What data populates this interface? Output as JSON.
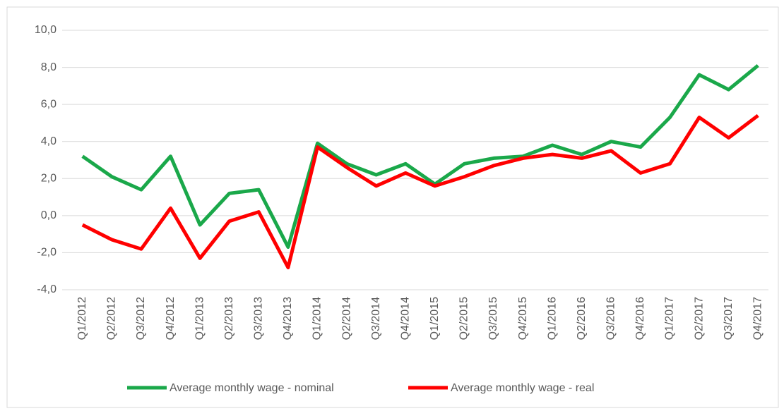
{
  "chart_data": {
    "type": "line",
    "categories": [
      "Q1/2012",
      "Q2/2012",
      "Q3/2012",
      "Q4/2012",
      "Q1/2013",
      "Q2/2013",
      "Q3/2013",
      "Q4/2013",
      "Q1/2014",
      "Q2/2014",
      "Q3/2014",
      "Q4/2014",
      "Q1/2015",
      "Q2/2015",
      "Q3/2015",
      "Q4/2015",
      "Q1/2016",
      "Q2/2016",
      "Q3/2016",
      "Q4/2016",
      "Q1/2017",
      "Q2/2017",
      "Q3/2017",
      "Q4/2017"
    ],
    "series": [
      {
        "name": "Average monthly wage - nominal",
        "color": "#1aa84a",
        "values": [
          3.2,
          2.1,
          1.4,
          3.2,
          -0.5,
          1.2,
          1.4,
          -1.7,
          3.9,
          2.8,
          2.2,
          2.8,
          1.7,
          2.8,
          3.1,
          3.2,
          3.8,
          3.3,
          4.0,
          3.7,
          5.3,
          7.6,
          6.8,
          8.1
        ]
      },
      {
        "name": "Average monthly wage - real",
        "color": "#ff0000",
        "values": [
          -0.5,
          -1.3,
          -1.8,
          0.4,
          -2.3,
          -0.3,
          0.2,
          -2.8,
          3.7,
          2.6,
          1.6,
          2.3,
          1.6,
          2.1,
          2.7,
          3.1,
          3.3,
          3.1,
          3.5,
          2.3,
          2.8,
          5.3,
          4.2,
          5.4
        ]
      }
    ],
    "ylim": [
      -4,
      10
    ],
    "yticks": [
      {
        "value": -4,
        "label": "-4,0"
      },
      {
        "value": -2,
        "label": "-2,0"
      },
      {
        "value": 0,
        "label": "0,0"
      },
      {
        "value": 2,
        "label": "2,0"
      },
      {
        "value": 4,
        "label": "4,0"
      },
      {
        "value": 6,
        "label": "6,0"
      },
      {
        "value": 8,
        "label": "8,0"
      },
      {
        "value": 10,
        "label": "10,0"
      }
    ],
    "grid": true,
    "legend": "bottom"
  }
}
